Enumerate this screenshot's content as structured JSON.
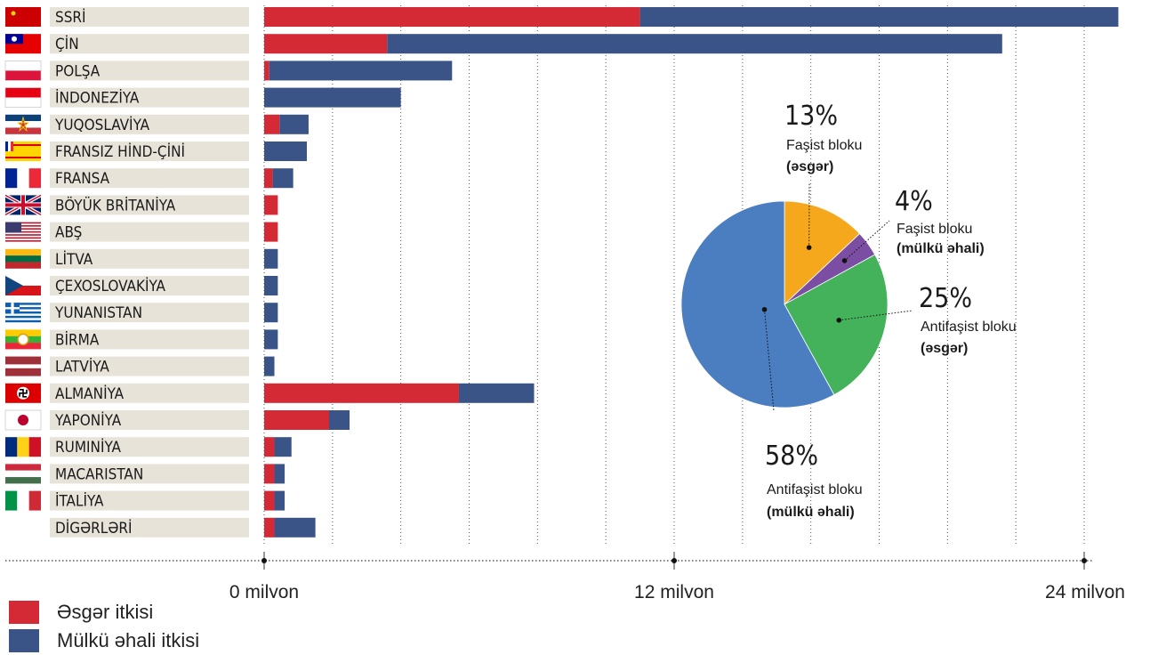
{
  "colors": {
    "military": "#d32a36",
    "civilian": "#3a5487",
    "label_bg": "#e8e3d9",
    "pie_axis_soldier": "#f6a81c",
    "pie_axis_civil": "#7b4ea3",
    "pie_allied_soldier": "#43b25a",
    "pie_allied_civil": "#4a7ec0"
  },
  "legend": {
    "military_label": "Əsgər itkisi",
    "civilian_label": "Mülkü əhali itkisi"
  },
  "chart_data": [
    {
      "type": "bar",
      "orientation": "horizontal",
      "stacked": true,
      "categories": [
        "SSRİ",
        "ÇİN",
        "POLŞA",
        "İNDONEZİYA",
        "YUQOSLAVİYA",
        "FRANSIZ HİND-ÇİNİ",
        "FRANSA",
        "BÖYÜK BRİTANİYA",
        "ABŞ",
        "LİTVA",
        "ÇEXOSLOVAKİYA",
        "YUNANISTAN",
        "BİRMA",
        "LATVİYA",
        "ALMANİYA",
        "YAPONİYA",
        "RUMINİYA",
        "MACARISTAN",
        "İTALİYA",
        "DİGƏRLƏRİ"
      ],
      "flags": [
        "ussr",
        "roc",
        "poland",
        "indonesia",
        "yugoslavia",
        "french-indochina",
        "france",
        "uk",
        "usa",
        "lithuania",
        "czechoslovakia",
        "greece",
        "burma",
        "latvia",
        "nazi-germany",
        "japan",
        "romania",
        "hungary",
        "italy",
        ""
      ],
      "series": [
        {
          "name": "Əsgər itkisi",
          "values": [
            11.0,
            3.6,
            0.15,
            0.0,
            0.45,
            0.0,
            0.25,
            0.4,
            0.4,
            0.0,
            0.0,
            0.0,
            0.0,
            0.0,
            5.7,
            1.9,
            0.3,
            0.3,
            0.3,
            0.3
          ]
        },
        {
          "name": "Mülkü əhali itkisi",
          "values": [
            14.0,
            18.0,
            5.35,
            4.0,
            0.85,
            1.25,
            0.6,
            0.0,
            0.0,
            0.4,
            0.4,
            0.4,
            0.4,
            0.3,
            2.2,
            0.6,
            0.5,
            0.3,
            0.3,
            1.2
          ]
        }
      ],
      "xlim": [
        0,
        24
      ],
      "tick_values": [
        0,
        12,
        24
      ],
      "tick_labels": [
        "0 milyon",
        "12 milyon",
        "24 milyon"
      ],
      "grid": "vertical dotted"
    },
    {
      "type": "pie",
      "slices": [
        {
          "value": 13,
          "label": "13%",
          "name_line1": "Faşist bloku",
          "name_line2": "(əsgər)",
          "color": "#f6a81c"
        },
        {
          "value": 4,
          "label": "4%",
          "name_line1": "Faşist bloku",
          "name_line2": "(mülkü əhali)",
          "color": "#7b4ea3"
        },
        {
          "value": 25,
          "label": "25%",
          "name_line1": "Antifaşist bloku",
          "name_line2": "(əsgər)",
          "color": "#43b25a"
        },
        {
          "value": 58,
          "label": "58%",
          "name_line1": "Antifaşist bloku",
          "name_line2": "(mülkü əhali)",
          "color": "#4a7ec0"
        }
      ]
    }
  ]
}
